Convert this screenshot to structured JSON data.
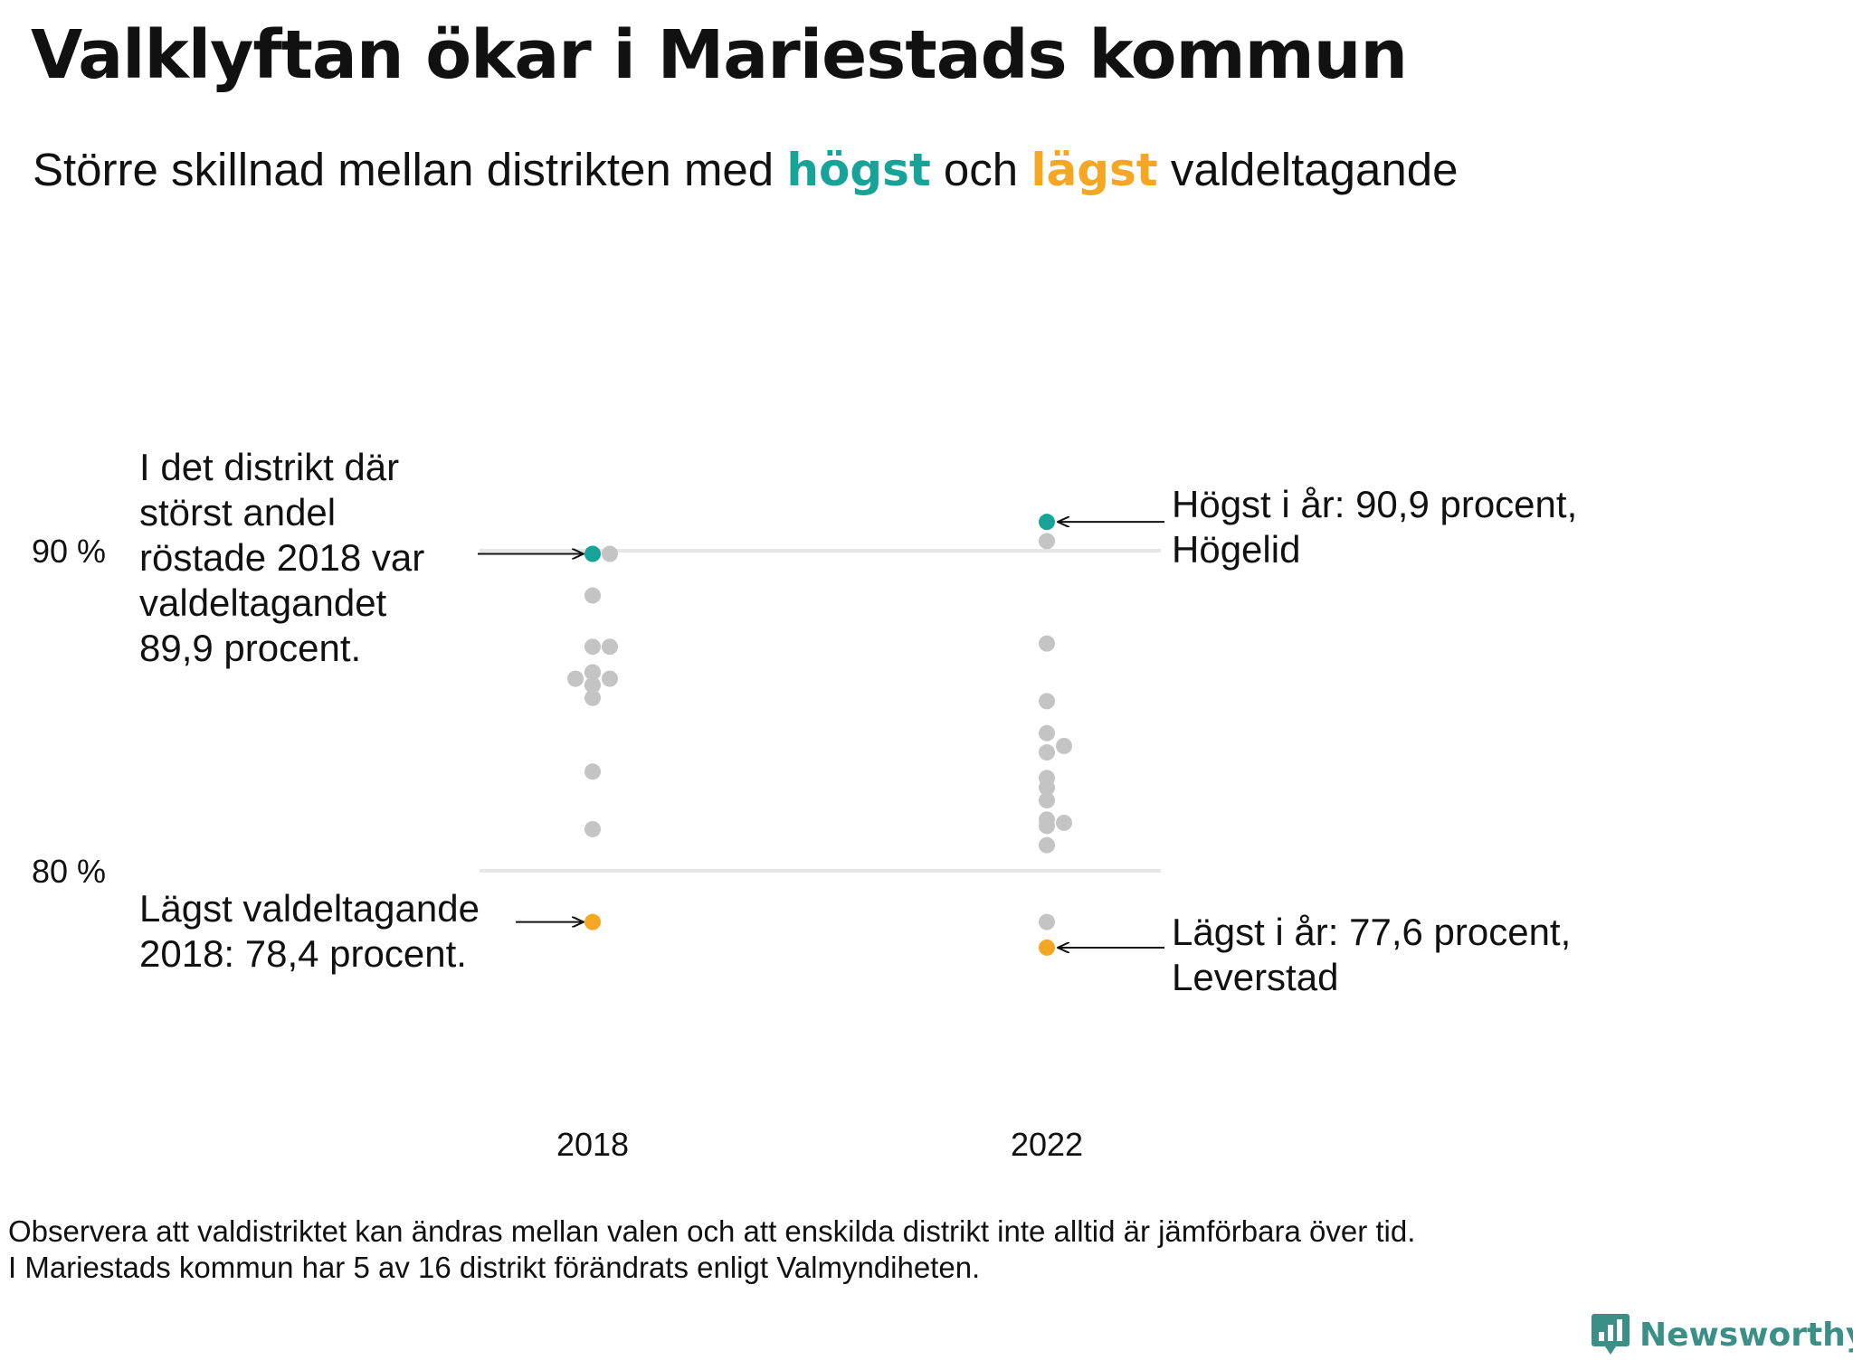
{
  "title": "Valklyftan ökar i Mariestads kommun",
  "subtitle": {
    "part1": "Större  skillnad  mellan  distrikten   med ",
    "high_word": "högst",
    "middle": " och ",
    "low_word": "lägst",
    "part2": " valdeltagande"
  },
  "colors": {
    "high": "#17a398",
    "low": "#f5a623",
    "neutral": "#c4c4c4",
    "gridline": "#e6e6e6",
    "text": "#111111",
    "brand": "#3a8f86"
  },
  "chart_data": {
    "type": "scatter",
    "title": "Valklyftan ökar i Mariestads kommun",
    "ylabel": "",
    "xlabel": "",
    "ylim": [
      76.0,
      92.5
    ],
    "y_ticks": [
      {
        "value": 80,
        "label": "80 %"
      },
      {
        "value": 90,
        "label": "90 %"
      }
    ],
    "categories": [
      "2018",
      "2022"
    ],
    "series": [
      {
        "name": "2018",
        "values": [
          89.9,
          89.9,
          88.6,
          87.0,
          87.0,
          86.0,
          86.0,
          85.8,
          86.2,
          86.2,
          85.4,
          83.1,
          81.3,
          78.4
        ],
        "offsets": [
          0,
          1,
          0,
          0,
          1,
          -1,
          1,
          0,
          0,
          0,
          0,
          0,
          0,
          0
        ],
        "highlight_max": 89.9,
        "highlight_min": 78.4
      },
      {
        "name": "2022",
        "values": [
          90.9,
          90.3,
          87.1,
          85.3,
          84.3,
          83.7,
          83.9,
          82.9,
          82.6,
          82.2,
          81.6,
          81.5,
          81.4,
          80.8,
          78.4,
          77.6
        ],
        "offsets": [
          0,
          0,
          0,
          0,
          0,
          0,
          1,
          0,
          0,
          0,
          0,
          1,
          0,
          0,
          0,
          0
        ],
        "highlight_max": 90.9,
        "highlight_min": 77.6
      }
    ],
    "annotations": {
      "high_2018": [
        "I det distrikt där",
        "störst andel",
        "röstade 2018 var",
        "valdeltagandet",
        "89,9 procent."
      ],
      "low_2018": [
        "Lägst valdeltagande",
        "2018: 78,4 procent."
      ],
      "high_2022": [
        "Högst i år: 90,9 procent,",
        "Högelid"
      ],
      "low_2022": [
        "Lägst i år: 77,6 procent,",
        "Leverstad"
      ]
    }
  },
  "footnote": {
    "line1": "Observera att valdistriktet kan ändras mellan valen och att enskilda distrikt inte alltid är jämförbara över tid.",
    "line2": "I Mariestads kommun har 5 av 16 distrikt förändrats enligt Valmyndiheten."
  },
  "brand": {
    "name": "Newsworthy",
    "icon": "bar-chart-speech-bubble-icon"
  }
}
